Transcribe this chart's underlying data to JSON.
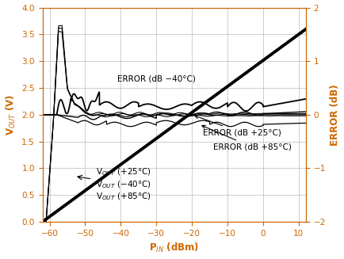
{
  "xlabel": "P$_{IN}$ (dBm)",
  "ylabel_left": "V$_{OUT}$ (V)",
  "ylabel_right": "ERROR (dB)",
  "xlim": [
    -62,
    12
  ],
  "ylim_left": [
    0,
    4.0
  ],
  "ylim_right": [
    -2.0,
    2.0
  ],
  "xticks": [
    -60,
    -50,
    -40,
    -30,
    -20,
    -10,
    0,
    10
  ],
  "yticks_left": [
    0,
    0.5,
    1.0,
    1.5,
    2.0,
    2.5,
    3.0,
    3.5,
    4.0
  ],
  "yticks_right": [
    -2.0,
    -1.0,
    0.0,
    1.0,
    2.0
  ],
  "line_color": "#000000",
  "background_color": "#ffffff",
  "grid_color": "#bbbbbb",
  "text_color": "#000000",
  "axis_color": "#000000",
  "label_color": "#cc6600"
}
